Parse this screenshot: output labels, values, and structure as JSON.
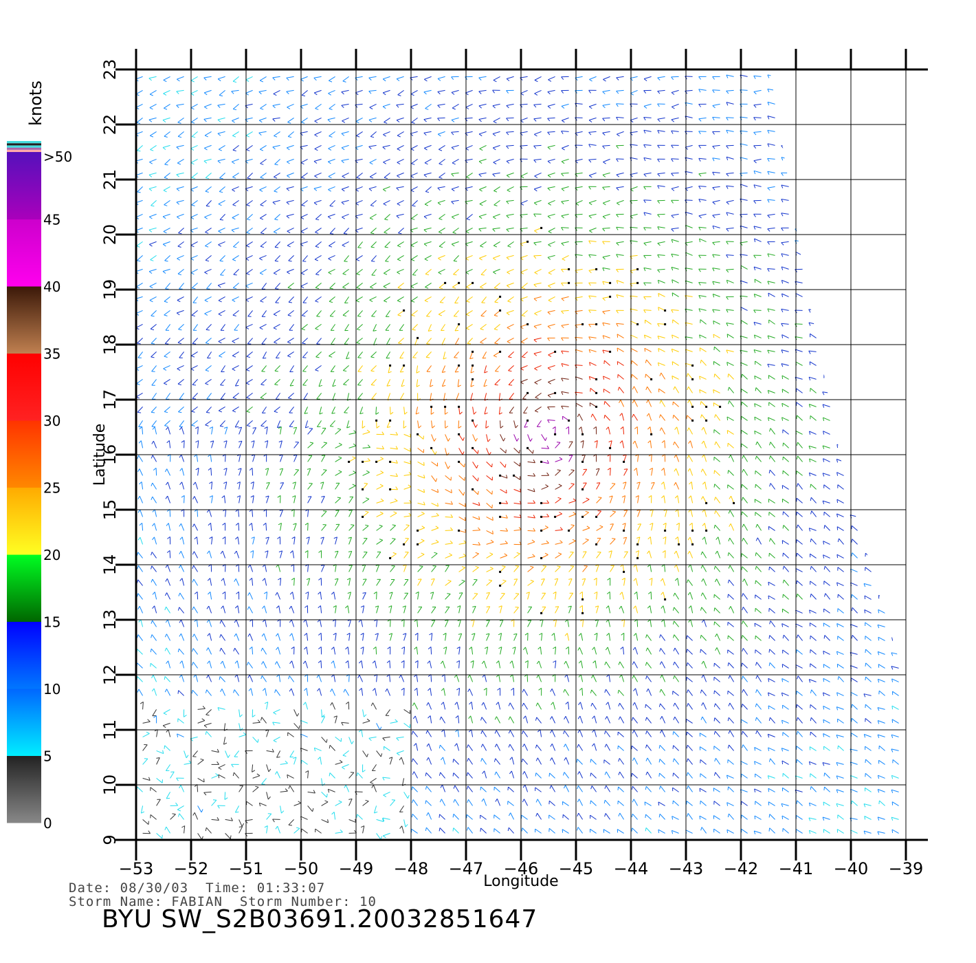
{
  "chart_data": {
    "type": "wind-vector-map",
    "xlabel": "Longitude",
    "ylabel": "Latitude",
    "xlim": [
      -53,
      -39
    ],
    "ylim": [
      9,
      23
    ],
    "x_ticks": [
      "-53",
      "-52",
      "-51",
      "-50",
      "-49",
      "-48",
      "-47",
      "-46",
      "-45",
      "-44",
      "-43",
      "-42",
      "-41",
      "-40",
      "-39"
    ],
    "y_ticks": [
      "9",
      "10",
      "11",
      "12",
      "13",
      "14",
      "15",
      "16",
      "17",
      "18",
      "19",
      "20",
      "21",
      "22",
      "23"
    ],
    "storm_center": {
      "lon": -45.5,
      "lat": 16.4
    },
    "colorbar": {
      "unit": "knots",
      "labels": [
        "0",
        "5",
        "10",
        "15",
        "20",
        "25",
        "30",
        "35",
        "40",
        "45",
        ">50"
      ],
      "bands": [
        {
          "from": 0,
          "to": 5,
          "colors": [
            "#888888",
            "#222222"
          ]
        },
        {
          "from": 5,
          "to": 10,
          "colors": [
            "#00eeff",
            "#0066ff"
          ]
        },
        {
          "from": 10,
          "to": 15,
          "colors": [
            "#0077ff",
            "#0000ff"
          ]
        },
        {
          "from": 15,
          "to": 20,
          "colors": [
            "#006600",
            "#00ff22"
          ]
        },
        {
          "from": 20,
          "to": 25,
          "colors": [
            "#ffff22",
            "#ffaa00"
          ]
        },
        {
          "from": 25,
          "to": 30,
          "colors": [
            "#ff8800",
            "#ff3300"
          ]
        },
        {
          "from": 30,
          "to": 35,
          "colors": [
            "#ff2222",
            "#ff0000"
          ]
        },
        {
          "from": 35,
          "to": 40,
          "colors": [
            "#c08050",
            "#3a1808"
          ]
        },
        {
          "from": 40,
          "to": 45,
          "colors": [
            "#ff00ee",
            "#cc00cc"
          ]
        },
        {
          "from": 45,
          "to": 50,
          "colors": [
            "#aa00bb",
            "#5511bb"
          ]
        }
      ],
      "top_stripes": [
        "#ffaaaa",
        "#aa66aa",
        "#44dddd",
        "#222222",
        "#44dddd"
      ]
    }
  },
  "info": {
    "date_label": "Date:",
    "date": "08/30/03",
    "time_label": "Time:",
    "time": "01:33:07",
    "storm_name_label": "Storm Name:",
    "storm_name": "FABIAN",
    "storm_number_label": "Storm Number:",
    "storm_number": "10",
    "product": "BYU SW_S2B03691.20032851647"
  }
}
